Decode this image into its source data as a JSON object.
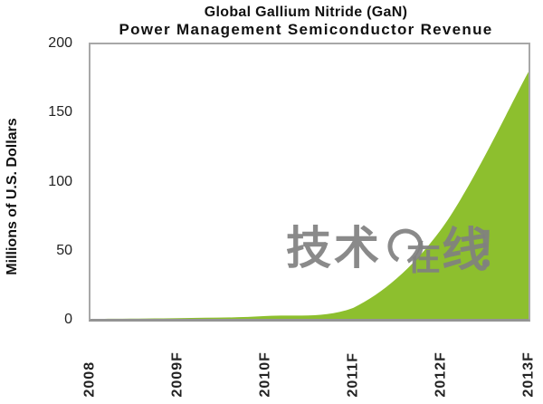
{
  "title": {
    "line1": "Global Gallium Nitride (GaN)",
    "line2": "Power Management Semiconductor Revenue"
  },
  "y_axis": {
    "title": "Millions of U.S. Dollars",
    "ticks": [
      "200",
      "150",
      "100",
      "50",
      "0"
    ]
  },
  "x_axis": {
    "labels": [
      "2008",
      "2009F",
      "2010F",
      "2011F",
      "2012F",
      "2013F"
    ]
  },
  "watermark": {
    "text_main": "技术",
    "text_zai": "在",
    "text_xian": "线",
    "text_exclaim": "！",
    "color": "#8c8c8c"
  },
  "colors": {
    "area_fill": "#8dbf2e",
    "frame": "#a8a8a8",
    "text": "#111111"
  },
  "chart_data": {
    "type": "area",
    "title": "Global Gallium Nitride (GaN) Power Management Semiconductor Revenue",
    "categories": [
      "2008",
      "2009F",
      "2010F",
      "2011F",
      "2012F",
      "2013F"
    ],
    "values": [
      0,
      0.5,
      2,
      8,
      65,
      180
    ],
    "xlabel": "",
    "ylabel": "Millions of U.S. Dollars",
    "ylim": [
      0,
      200
    ],
    "yticks": [
      0,
      50,
      100,
      150,
      200
    ],
    "fill_color": "#8dbf2e",
    "smooth": true,
    "grid": false,
    "legend": false
  }
}
